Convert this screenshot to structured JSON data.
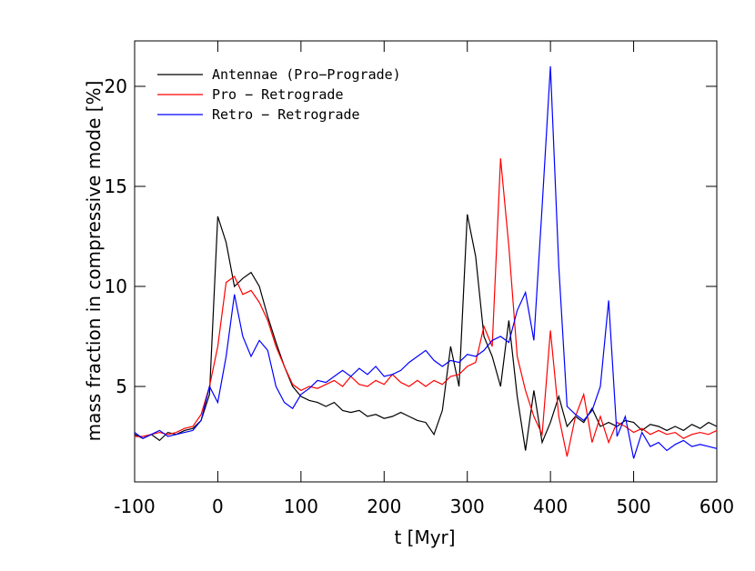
{
  "chart_data": {
    "type": "line",
    "xlabel": "t [Myr]",
    "ylabel": "mass fraction in compressive mode [%]",
    "xlim": [
      -100,
      600
    ],
    "ylim": [
      0.23,
      22.27
    ],
    "xticks": [
      -100,
      0,
      100,
      200,
      300,
      400,
      500,
      600
    ],
    "yticks": [
      5,
      10,
      15,
      20
    ],
    "legend": "upper left",
    "x": [
      -100,
      -90,
      -80,
      -70,
      -60,
      -50,
      -40,
      -30,
      -20,
      -10,
      0,
      10,
      20,
      30,
      40,
      50,
      60,
      70,
      80,
      90,
      100,
      110,
      120,
      130,
      140,
      150,
      160,
      170,
      180,
      190,
      200,
      210,
      220,
      230,
      240,
      250,
      260,
      270,
      280,
      290,
      300,
      310,
      320,
      330,
      340,
      350,
      360,
      370,
      380,
      390,
      400,
      410,
      420,
      430,
      440,
      450,
      460,
      470,
      480,
      490,
      500,
      510,
      520,
      530,
      540,
      550,
      560,
      570,
      580,
      590,
      600
    ],
    "series": [
      {
        "name": "Antennae (Pro−Prograde)",
        "color": "#000000",
        "values": [
          2.6,
          2.4,
          2.6,
          2.3,
          2.7,
          2.6,
          2.8,
          2.9,
          3.3,
          4.6,
          13.5,
          12.2,
          10.0,
          10.4,
          10.7,
          10.0,
          8.5,
          7.2,
          6.0,
          5.0,
          4.5,
          4.3,
          4.2,
          4.0,
          4.2,
          3.8,
          3.7,
          3.8,
          3.5,
          3.6,
          3.4,
          3.5,
          3.7,
          3.5,
          3.3,
          3.2,
          2.6,
          3.8,
          7.0,
          5.0,
          13.6,
          11.5,
          7.5,
          6.5,
          5.0,
          8.3,
          4.5,
          1.8,
          4.8,
          2.2,
          3.2,
          4.5,
          3.0,
          3.5,
          3.2,
          3.9,
          3.0,
          3.2,
          3.0,
          3.3,
          3.2,
          2.8,
          3.1,
          3.0,
          2.8,
          3.0,
          2.8,
          3.1,
          2.9,
          3.2,
          3.0
        ]
      },
      {
        "name": "Pro − Retrograde",
        "color": "#ff0000",
        "values": [
          2.5,
          2.5,
          2.6,
          2.7,
          2.6,
          2.7,
          2.9,
          3.0,
          3.6,
          5.0,
          7.0,
          10.2,
          10.5,
          9.6,
          9.8,
          9.2,
          8.3,
          7.0,
          6.0,
          5.1,
          4.8,
          5.0,
          4.9,
          5.1,
          5.3,
          5.0,
          5.5,
          5.1,
          5.0,
          5.3,
          5.1,
          5.6,
          5.2,
          5.0,
          5.3,
          5.0,
          5.3,
          5.1,
          5.5,
          5.6,
          6.0,
          6.2,
          8.0,
          7.0,
          16.4,
          12.0,
          6.5,
          4.8,
          3.5,
          2.6,
          7.8,
          3.5,
          1.5,
          3.5,
          4.6,
          2.2,
          3.5,
          2.2,
          3.2,
          3.0,
          2.7,
          2.9,
          2.6,
          2.8,
          2.6,
          2.7,
          2.4,
          2.6,
          2.7,
          2.6,
          2.8
        ]
      },
      {
        "name": "Retro − Retrograde",
        "color": "#0000ff",
        "values": [
          2.7,
          2.4,
          2.6,
          2.8,
          2.5,
          2.6,
          2.7,
          2.8,
          3.3,
          5.0,
          4.2,
          6.5,
          9.6,
          7.5,
          6.5,
          7.3,
          6.8,
          5.0,
          4.2,
          3.9,
          4.6,
          4.9,
          5.3,
          5.2,
          5.5,
          5.8,
          5.5,
          5.9,
          5.6,
          6.0,
          5.5,
          5.6,
          5.8,
          6.2,
          6.5,
          6.8,
          6.3,
          6.0,
          6.3,
          6.2,
          6.6,
          6.5,
          6.8,
          7.3,
          7.5,
          7.2,
          8.8,
          9.7,
          7.3,
          14.0,
          21.0,
          11.0,
          4.0,
          3.6,
          3.3,
          3.8,
          5.0,
          9.3,
          2.5,
          3.5,
          1.4,
          2.7,
          2.0,
          2.2,
          1.8,
          2.1,
          2.3,
          2.0,
          2.1,
          2.0,
          1.9
        ]
      }
    ]
  }
}
